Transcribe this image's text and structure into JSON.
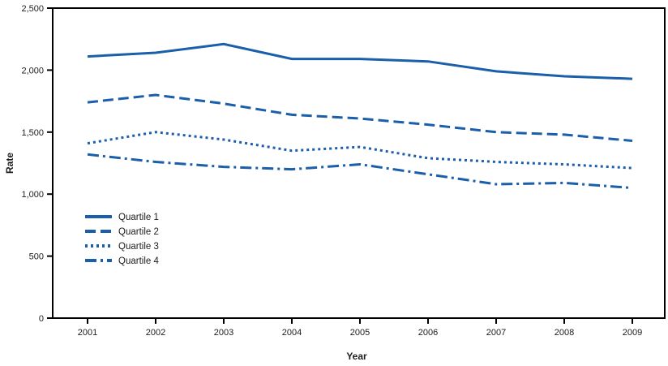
{
  "figure": {
    "background": "#ffffff",
    "accent_color": "#1B5EA9",
    "axis_color": "#000000",
    "text_color": "#1c1c1c"
  },
  "chart_data": {
    "type": "line",
    "title": "",
    "xlabel": "Year",
    "ylabel": "Rate",
    "x": [
      2001,
      2002,
      2003,
      2004,
      2005,
      2006,
      2007,
      2008,
      2009
    ],
    "xtick_labels": [
      "2001",
      "2002",
      "2003",
      "2004",
      "2005",
      "2006",
      "2007",
      "2008",
      "2009"
    ],
    "ylim": [
      0,
      2500
    ],
    "yticks": [
      0,
      500,
      1000,
      1500,
      2000,
      2500
    ],
    "ytick_labels": [
      "0",
      "500",
      "1,000",
      "1,500",
      "2,000",
      "2,500"
    ],
    "grid": false,
    "legend_position": "inside-left",
    "frame": "full-box",
    "series": [
      {
        "name": "Quartile 1",
        "style": "solid",
        "color": "#1B5EA9",
        "values": [
          2110,
          2140,
          2210,
          2090,
          2090,
          2070,
          1990,
          1950,
          1930
        ]
      },
      {
        "name": "Quartile 2",
        "style": "dashed",
        "color": "#1B5EA9",
        "values": [
          1740,
          1800,
          1730,
          1640,
          1610,
          1560,
          1500,
          1480,
          1430
        ]
      },
      {
        "name": "Quartile 3",
        "style": "dotted",
        "color": "#1B5EA9",
        "values": [
          1410,
          1500,
          1440,
          1350,
          1380,
          1290,
          1260,
          1240,
          1210
        ]
      },
      {
        "name": "Quartile 4",
        "style": "dashdot",
        "color": "#1B5EA9",
        "values": [
          1320,
          1260,
          1220,
          1200,
          1240,
          1160,
          1080,
          1090,
          1050
        ]
      }
    ]
  }
}
